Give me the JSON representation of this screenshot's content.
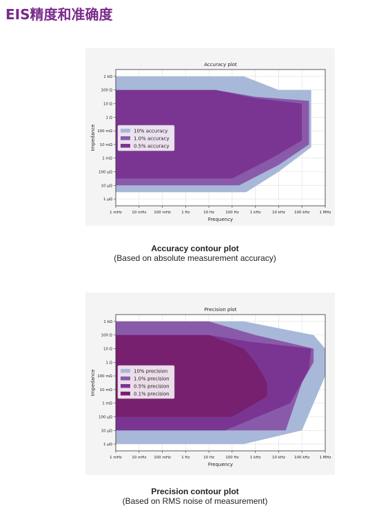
{
  "header": {
    "title": "EIS精度和准确度"
  },
  "captions": {
    "accuracy_title": "Accuracy contour plot",
    "accuracy_sub": "(Based on absolute measurement accuracy)",
    "precision_title": "Precision contour plot",
    "precision_sub": "(Based on RMS noise of measurement)"
  },
  "colors": {
    "outer": "#a8b8d8",
    "mid": "#8a5aaa",
    "inner": "#7a3592",
    "innermost": "#77206f",
    "grid": "#dddddd"
  },
  "chart_data": [
    {
      "type": "area",
      "title": "Accuracy plot",
      "xlabel": "Frequency",
      "ylabel": "Impedance",
      "x_ticks": [
        "1 mHz",
        "10 mHz",
        "100 mHz",
        "1 Hz",
        "10 Hz",
        "100 Hz",
        "1 kHz",
        "10 kHz",
        "100 kHz",
        "1 MHz"
      ],
      "y_ticks": [
        "1 kΩ",
        "100 Ω",
        "10 Ω",
        "1 Ω",
        "100 mΩ",
        "10 mΩ",
        "1 mΩ",
        "100 μΩ",
        "10 μΩ",
        "1 μΩ"
      ],
      "xlim_log10_hz": [
        -3,
        6
      ],
      "ylim_log10_ohm": [
        -6.5,
        3.5
      ],
      "x_unit": "Hz (log10)",
      "y_unit": "Ω (log10)",
      "grid": true,
      "legend_position": "left-middle",
      "series": [
        {
          "name": "10% accuracy",
          "color_key": "outer",
          "polygon": [
            [
              -3,
              3
            ],
            [
              2.5,
              3
            ],
            [
              4,
              2
            ],
            [
              5.4,
              2
            ],
            [
              5.4,
              -2.2
            ],
            [
              4,
              -4
            ],
            [
              2.6,
              -5.5
            ],
            [
              -3,
              -5.5
            ]
          ]
        },
        {
          "name": "1.0% accuracy",
          "color_key": "mid",
          "polygon": [
            [
              -3,
              2
            ],
            [
              1.3,
              2
            ],
            [
              3,
              1.5
            ],
            [
              5.3,
              1.2
            ],
            [
              5.3,
              -2
            ],
            [
              4,
              -3.5
            ],
            [
              2.3,
              -5
            ],
            [
              -3,
              -5
            ]
          ]
        },
        {
          "name": "0.5% accuracy",
          "color_key": "inner",
          "polygon": [
            [
              -3,
              2
            ],
            [
              1.3,
              2
            ],
            [
              3,
              1.4
            ],
            [
              5,
              1
            ],
            [
              5,
              -1.7
            ],
            [
              3.7,
              -3
            ],
            [
              2,
              -4.5
            ],
            [
              -3,
              -4.5
            ]
          ]
        }
      ]
    },
    {
      "type": "area",
      "title": "Precision plot",
      "xlabel": "Frequency",
      "ylabel": "Impedance",
      "x_ticks": [
        "1 mHz",
        "10 mHz",
        "100 mHz",
        "1 Hz",
        "10 Hz",
        "100 Hz",
        "1 kHz",
        "10 kHz",
        "100 kHz",
        "1 MHz"
      ],
      "y_ticks": [
        "1 kΩ",
        "100 Ω",
        "10 Ω",
        "1 Ω",
        "100 mΩ",
        "10 mΩ",
        "1 mΩ",
        "100 μΩ",
        "10 μΩ",
        "1 μΩ"
      ],
      "xlim_log10_hz": [
        -3,
        6
      ],
      "ylim_log10_ohm": [
        -6.5,
        3.5
      ],
      "x_unit": "Hz (log10)",
      "y_unit": "Ω (log10)",
      "grid": true,
      "legend_position": "left-middle",
      "series": [
        {
          "name": "10% precision",
          "color_key": "outer",
          "polygon": [
            [
              -3,
              3
            ],
            [
              2.5,
              3
            ],
            [
              5.5,
              2
            ],
            [
              6,
              1
            ],
            [
              6,
              -1
            ],
            [
              5,
              -5
            ],
            [
              2.5,
              -6
            ],
            [
              -3,
              -6
            ]
          ]
        },
        {
          "name": "1.0% precision",
          "color_key": "mid",
          "polygon": [
            [
              -3,
              3
            ],
            [
              1,
              3
            ],
            [
              3,
              2
            ],
            [
              5.5,
              1
            ],
            [
              5.5,
              0
            ],
            [
              5,
              -1.5
            ],
            [
              4.3,
              -5
            ],
            [
              -3,
              -5
            ]
          ]
        },
        {
          "name": "0.5% precision",
          "color_key": "inner",
          "polygon": [
            [
              -3,
              2
            ],
            [
              1,
              2
            ],
            [
              2.8,
              1.5
            ],
            [
              5.4,
              1
            ],
            [
              5.3,
              -0.5
            ],
            [
              4.5,
              -3
            ],
            [
              1.7,
              -5
            ],
            [
              -3,
              -5
            ]
          ]
        },
        {
          "name": "0.1% precision",
          "color_key": "innermost",
          "polygon": [
            [
              -3,
              2
            ],
            [
              1,
              2
            ],
            [
              2.5,
              1
            ],
            [
              3,
              0
            ],
            [
              3.5,
              -1.5
            ],
            [
              3.5,
              -2.5
            ],
            [
              2,
              -4
            ],
            [
              -3,
              -4
            ]
          ]
        }
      ]
    }
  ]
}
